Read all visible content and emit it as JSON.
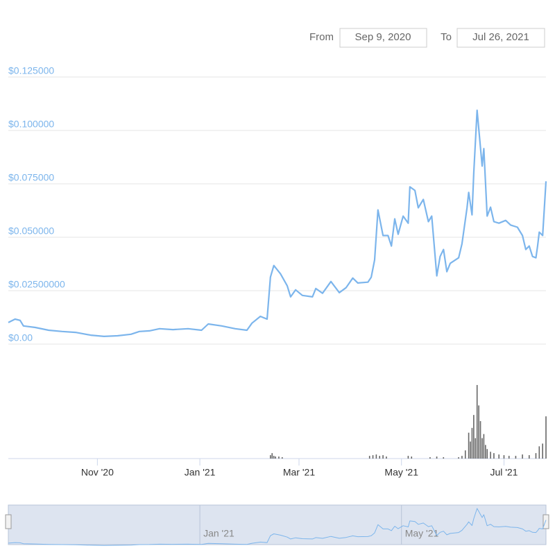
{
  "controls": {
    "from_label": "From",
    "from": "Sep 9, 2020",
    "to_label": "To",
    "to": "Jul 26, 2021"
  },
  "chart_data": {
    "type": "line",
    "color": "#7cb5ec",
    "grid": true,
    "x": [
      "2020-09-09",
      "2020-09-13",
      "2020-09-16",
      "2020-09-18",
      "2020-09-25",
      "2020-10-03",
      "2020-10-11",
      "2020-10-19",
      "2020-10-28",
      "2020-11-05",
      "2020-11-13",
      "2020-11-21",
      "2020-11-26",
      "2020-12-02",
      "2020-12-08",
      "2020-12-16",
      "2020-12-25",
      "2021-01-02",
      "2021-01-06",
      "2021-01-14",
      "2021-01-22",
      "2021-01-29",
      "2021-02-01",
      "2021-02-06",
      "2021-02-10",
      "2021-02-12",
      "2021-02-14",
      "2021-02-18",
      "2021-02-22",
      "2021-02-24",
      "2021-02-27",
      "2021-03-03",
      "2021-03-09",
      "2021-03-11",
      "2021-03-15",
      "2021-03-20",
      "2021-03-25",
      "2021-03-29",
      "2021-04-02",
      "2021-04-05",
      "2021-04-11",
      "2021-04-13",
      "2021-04-15",
      "2021-04-17",
      "2021-04-20",
      "2021-04-23",
      "2021-04-25",
      "2021-04-27",
      "2021-04-29",
      "2021-05-02",
      "2021-05-05",
      "2021-05-06",
      "2021-05-09",
      "2021-05-11",
      "2021-05-14",
      "2021-05-17",
      "2021-05-19",
      "2021-05-22",
      "2021-05-24",
      "2021-05-26",
      "2021-05-28",
      "2021-05-30",
      "2021-06-04",
      "2021-06-06",
      "2021-06-09",
      "2021-06-10",
      "2021-06-12",
      "2021-06-13",
      "2021-06-15",
      "2021-06-18",
      "2021-06-19",
      "2021-06-21",
      "2021-06-23",
      "2021-06-25",
      "2021-06-28",
      "2021-07-02",
      "2021-07-05",
      "2021-07-09",
      "2021-07-12",
      "2021-07-14",
      "2021-07-16",
      "2021-07-18",
      "2021-07-20",
      "2021-07-21",
      "2021-07-22",
      "2021-07-24",
      "2021-07-26"
    ],
    "values": [
      0.0101,
      0.0117,
      0.0111,
      0.0085,
      0.0078,
      0.0065,
      0.0059,
      0.0055,
      0.0042,
      0.0036,
      0.0039,
      0.0046,
      0.0059,
      0.0062,
      0.0072,
      0.0068,
      0.0072,
      0.0065,
      0.0094,
      0.0085,
      0.0072,
      0.0065,
      0.0098,
      0.013,
      0.0117,
      0.0313,
      0.0368,
      0.0329,
      0.0273,
      0.0221,
      0.0254,
      0.0228,
      0.0221,
      0.026,
      0.0238,
      0.0293,
      0.0241,
      0.0264,
      0.0309,
      0.0286,
      0.029,
      0.0313,
      0.0394,
      0.0628,
      0.0508,
      0.0508,
      0.0459,
      0.0586,
      0.0514,
      0.0599,
      0.0566,
      0.0736,
      0.0719,
      0.0638,
      0.0677,
      0.0573,
      0.0599,
      0.0319,
      0.041,
      0.0443,
      0.0339,
      0.0378,
      0.0404,
      0.0469,
      0.0638,
      0.071,
      0.0605,
      0.0801,
      0.1094,
      0.0833,
      0.0915,
      0.0599,
      0.0641,
      0.0573,
      0.0566,
      0.0579,
      0.0557,
      0.0547,
      0.0508,
      0.0443,
      0.0459,
      0.041,
      0.0404,
      0.0459,
      0.0524,
      0.0508,
      0.0762
    ],
    "xlim": [
      "2020-09-09",
      "2021-07-26"
    ],
    "xticks": [
      {
        "value": "2020-11-01",
        "label": "Nov '20"
      },
      {
        "value": "2021-01-01",
        "label": "Jan '21"
      },
      {
        "value": "2021-03-01",
        "label": "Mar '21"
      },
      {
        "value": "2021-05-01",
        "label": "May '21"
      },
      {
        "value": "2021-07-01",
        "label": "Jul '21"
      }
    ],
    "ylim": [
      0,
      0.125
    ],
    "yticks": [
      {
        "value": 0,
        "label": "$0.00"
      },
      {
        "value": 0.025,
        "label": "$0.02500000"
      },
      {
        "value": 0.05,
        "label": "$0.050000"
      },
      {
        "value": 0.075,
        "label": "$0.075000"
      },
      {
        "value": 0.1,
        "label": "$0.100000"
      },
      {
        "value": 0.125,
        "label": "$0.125000"
      }
    ],
    "volume": {
      "color": "#666666",
      "ylim": [
        0,
        110
      ],
      "x": [
        "2021-02-12",
        "2021-02-13",
        "2021-02-14",
        "2021-02-15",
        "2021-02-17",
        "2021-02-19",
        "2021-04-12",
        "2021-04-14",
        "2021-04-16",
        "2021-04-18",
        "2021-04-20",
        "2021-04-22",
        "2021-05-05",
        "2021-05-07",
        "2021-05-18",
        "2021-05-22",
        "2021-05-26",
        "2021-06-04",
        "2021-06-06",
        "2021-06-08",
        "2021-06-10",
        "2021-06-11",
        "2021-06-12",
        "2021-06-13",
        "2021-06-14",
        "2021-06-15",
        "2021-06-16",
        "2021-06-17",
        "2021-06-18",
        "2021-06-19",
        "2021-06-20",
        "2021-06-21",
        "2021-06-23",
        "2021-06-25",
        "2021-06-28",
        "2021-07-01",
        "2021-07-04",
        "2021-07-08",
        "2021-07-12",
        "2021-07-16",
        "2021-07-20",
        "2021-07-22",
        "2021-07-24",
        "2021-07-26"
      ],
      "values": [
        5,
        8,
        4,
        3,
        3,
        2,
        4,
        5,
        6,
        4,
        5,
        3,
        4,
        3,
        2,
        3,
        2,
        2,
        4,
        12,
        38,
        25,
        45,
        64,
        30,
        108,
        78,
        55,
        30,
        36,
        20,
        14,
        10,
        8,
        6,
        5,
        4,
        4,
        6,
        5,
        8,
        18,
        22,
        62
      ]
    },
    "navigator": {
      "xticks": [
        {
          "value": "2021-01-01",
          "label": "Jan '21"
        },
        {
          "value": "2021-05-01",
          "label": "May '21"
        }
      ]
    }
  }
}
